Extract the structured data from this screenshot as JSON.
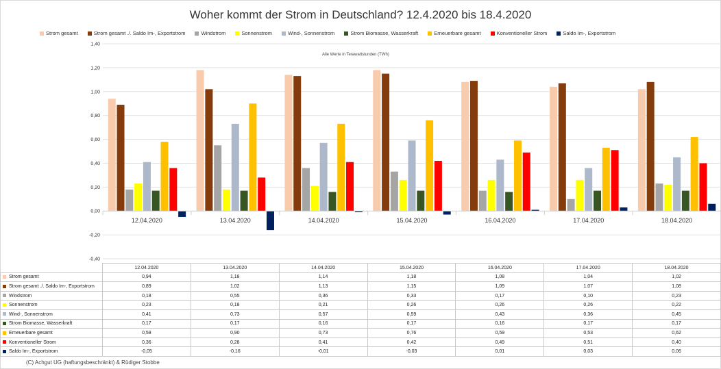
{
  "chart_data": {
    "type": "bar",
    "title": "Woher kommt der Strom in Deutschland? 12.4.2020 bis 18.4.2020",
    "annotation": "Alle Werte in Terawattstunden (TWh)",
    "categories": [
      "12.04.2020",
      "13.04.2020",
      "14.04.2020",
      "15.04.2020",
      "16.04.2020",
      "17.04.2020",
      "18.04.2020"
    ],
    "ylim": [
      -0.4,
      1.4
    ],
    "yticks": [
      "1,40",
      "1,20",
      "1,00",
      "0,80",
      "0,60",
      "0,40",
      "0,20",
      "0,00",
      "-0,20",
      "-0,40"
    ],
    "series": [
      {
        "name": "Strom gesamt",
        "color": "#f8cbad",
        "values": [
          0.94,
          1.18,
          1.14,
          1.18,
          1.08,
          1.04,
          1.02
        ],
        "labels": [
          "0,94",
          "1,18",
          "1,14",
          "1,18",
          "1,08",
          "1,04",
          "1,02"
        ]
      },
      {
        "name": "Strom gesamt ./. Saldo Im-, Exportstrom",
        "color": "#843c0c",
        "values": [
          0.89,
          1.02,
          1.13,
          1.15,
          1.09,
          1.07,
          1.08
        ],
        "labels": [
          "0,89",
          "1,02",
          "1,13",
          "1,15",
          "1,09",
          "1,07",
          "1,08"
        ]
      },
      {
        "name": "Windstrom",
        "color": "#a5a5a5",
        "values": [
          0.18,
          0.55,
          0.36,
          0.33,
          0.17,
          0.1,
          0.23
        ],
        "labels": [
          "0,18",
          "0,55",
          "0,36",
          "0,33",
          "0,17",
          "0,10",
          "0,23"
        ]
      },
      {
        "name": "Sonnenstrom",
        "color": "#ffff00",
        "values": [
          0.23,
          0.18,
          0.21,
          0.26,
          0.26,
          0.26,
          0.22
        ],
        "labels": [
          "0,23",
          "0,18",
          "0,21",
          "0,26",
          "0,26",
          "0,26",
          "0,22"
        ]
      },
      {
        "name": "Wind-, Sonnenstrom",
        "color": "#adb9ca",
        "values": [
          0.41,
          0.73,
          0.57,
          0.59,
          0.43,
          0.36,
          0.45
        ],
        "labels": [
          "0,41",
          "0,73",
          "0,57",
          "0,59",
          "0,43",
          "0,36",
          "0,45"
        ]
      },
      {
        "name": "Strom Biomasse, Wasserkraft",
        "color": "#375623",
        "values": [
          0.17,
          0.17,
          0.16,
          0.17,
          0.16,
          0.17,
          0.17
        ],
        "labels": [
          "0,17",
          "0,17",
          "0,16",
          "0,17",
          "0,16",
          "0,17",
          "0,17"
        ]
      },
      {
        "name": "Erneuerbare gesamt",
        "color": "#ffc000",
        "values": [
          0.58,
          0.9,
          0.73,
          0.76,
          0.59,
          0.53,
          0.62
        ],
        "labels": [
          "0,58",
          "0,90",
          "0,73",
          "0,76",
          "0,59",
          "0,53",
          "0,62"
        ]
      },
      {
        "name": "Konventioneller Strom",
        "color": "#ff0000",
        "values": [
          0.36,
          0.28,
          0.41,
          0.42,
          0.49,
          0.51,
          0.4
        ],
        "labels": [
          "0,36",
          "0,28",
          "0,41",
          "0,42",
          "0,49",
          "0,51",
          "0,40"
        ]
      },
      {
        "name": "Saldo Im-, Exportstrom",
        "color": "#002060",
        "values": [
          -0.05,
          -0.16,
          -0.01,
          -0.03,
          0.01,
          0.03,
          0.06
        ],
        "labels": [
          "-0,05",
          "-0,16",
          "-0,01",
          "-0,03",
          "0,01",
          "0,03",
          "0,06"
        ]
      }
    ]
  },
  "credit": "(C) Achgut UG (haftungsbeschränkt) & Rüdiger Stobbe"
}
